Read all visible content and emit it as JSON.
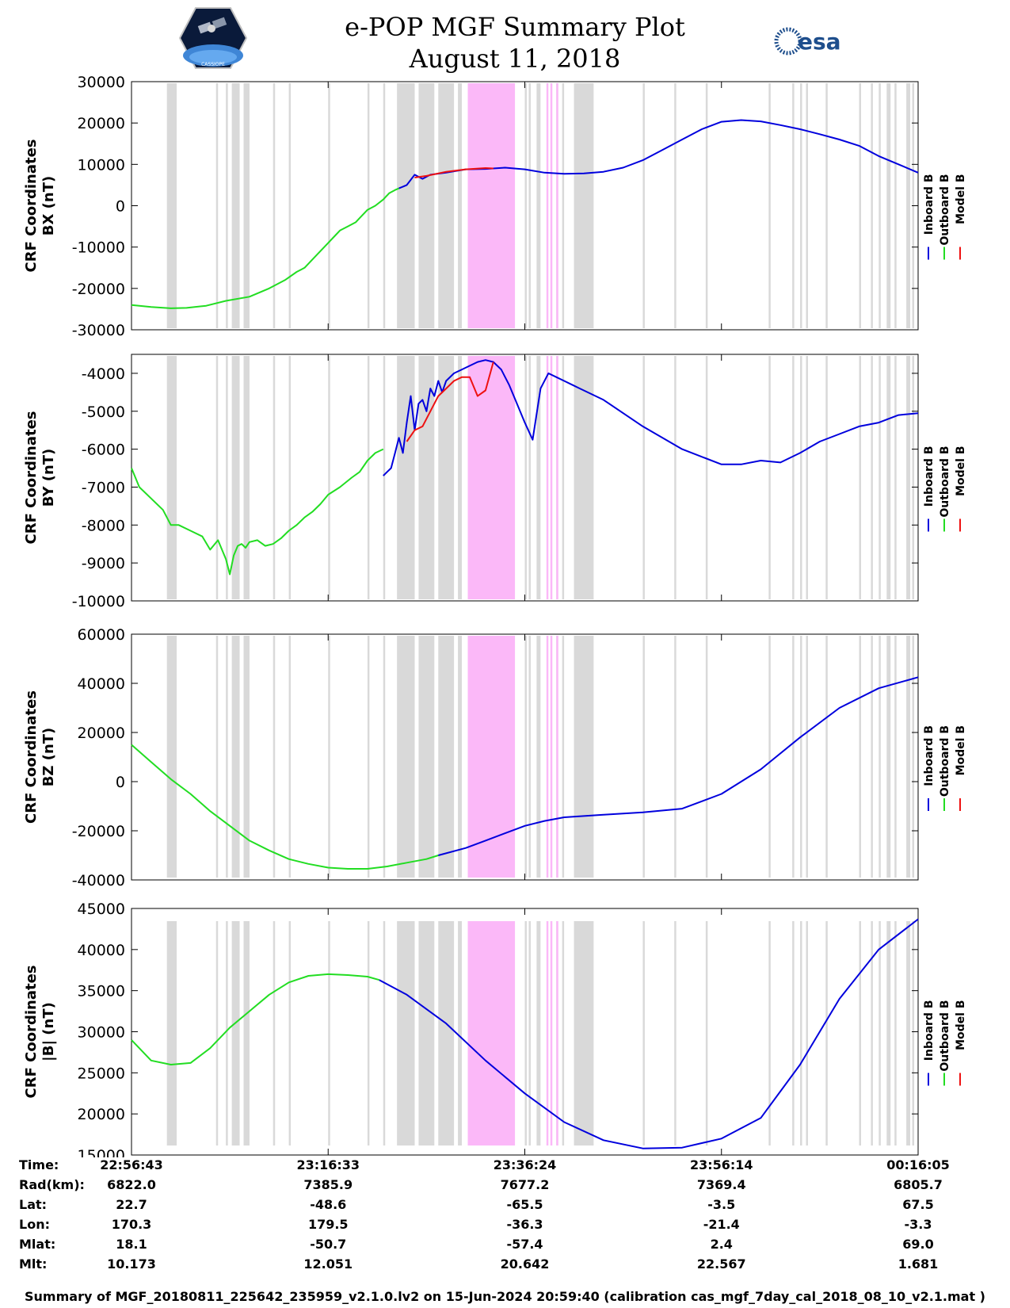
{
  "header": {
    "title_line1": "e-POP MGF Summary Plot",
    "title_line2": "August 11, 2018",
    "logo_left_text": "CASSIOPE",
    "logo_right_text": "esa"
  },
  "colors": {
    "inboard": "#0000dd",
    "outboard": "#22dd22",
    "model": "#ee1111",
    "gap_gray": "#d9d9d9",
    "gap_pink": "#fbb8f8"
  },
  "legend": [
    "Inboard B",
    "Outboard B",
    "Model B"
  ],
  "chart_data": [
    {
      "type": "line",
      "id": "bx",
      "ylabel_line1": "CRF Coordinates",
      "ylabel_line2": "BX (nT)",
      "ylim": [
        -30000,
        30000
      ],
      "yticks": [
        30000,
        20000,
        10000,
        0,
        -10000,
        -20000,
        -30000
      ],
      "series": [
        {
          "name": "Outboard B",
          "color_key": "outboard",
          "x": [
            0,
            0.02,
            0.05,
            0.1,
            0.14,
            0.19,
            0.24,
            0.3,
            0.35,
            0.39,
            0.42,
            0.44,
            0.46,
            0.48,
            0.5,
            0.52,
            0.53,
            0.55,
            0.57,
            0.58,
            0.6,
            0.62,
            0.64,
            0.655,
            0.67,
            0.68
          ],
          "y": [
            -24000,
            -24200,
            -24500,
            -24800,
            -24700,
            -24200,
            -23000,
            -22000,
            -20000,
            -18000,
            -16000,
            -15000,
            -13000,
            -11000,
            -9000,
            -7000,
            -6000,
            -5000,
            -4000,
            -3000,
            -1000,
            0,
            1500,
            3000,
            3800,
            4200
          ]
        },
        {
          "name": "Inboard B",
          "color_key": "inboard",
          "x": [
            0.68,
            0.7,
            0.72,
            0.74,
            0.76,
            0.8,
            0.85,
            0.9,
            0.95,
            1.0,
            1.05,
            1.1,
            1.15,
            1.2,
            1.25,
            1.3,
            1.35,
            1.4,
            1.45,
            1.5,
            1.55,
            1.6,
            1.65,
            1.7,
            1.75,
            1.8,
            1.85,
            1.9,
            1.95,
            2.0
          ],
          "y": [
            4200,
            5000,
            7500,
            6500,
            7500,
            8000,
            8800,
            8900,
            9200,
            8800,
            8000,
            7700,
            7800,
            8200,
            9200,
            11000,
            13500,
            16000,
            18500,
            20300,
            20700,
            20400,
            19500,
            18500,
            17300,
            16000,
            14500,
            12000,
            10000,
            8000
          ]
        },
        {
          "name": "Model B",
          "color_key": "model",
          "x": [
            0.72,
            0.75,
            0.8,
            0.85,
            0.9,
            0.92
          ],
          "y": [
            6800,
            7200,
            8200,
            8800,
            9100,
            9000
          ]
        }
      ]
    },
    {
      "type": "line",
      "id": "by",
      "ylabel_line1": "CRF Coordinates",
      "ylabel_line2": "BY (nT)",
      "ylim": [
        -10000,
        -3500
      ],
      "yticks": [
        -4000,
        -5000,
        -6000,
        -7000,
        -8000,
        -9000,
        -10000
      ],
      "series": [
        {
          "name": "Outboard B",
          "color_key": "outboard",
          "x": [
            0,
            0.02,
            0.05,
            0.08,
            0.1,
            0.12,
            0.15,
            0.18,
            0.2,
            0.22,
            0.24,
            0.25,
            0.26,
            0.27,
            0.28,
            0.29,
            0.3,
            0.32,
            0.34,
            0.36,
            0.38,
            0.4,
            0.42,
            0.44,
            0.46,
            0.48,
            0.5,
            0.53,
            0.56,
            0.58,
            0.6,
            0.62,
            0.64
          ],
          "y": [
            -6500,
            -7000,
            -7300,
            -7600,
            -8000,
            -8000,
            -8150,
            -8300,
            -8650,
            -8400,
            -8900,
            -9300,
            -8800,
            -8550,
            -8500,
            -8600,
            -8450,
            -8400,
            -8550,
            -8500,
            -8350,
            -8150,
            -8000,
            -7800,
            -7650,
            -7450,
            -7200,
            -7000,
            -6750,
            -6600,
            -6300,
            -6100,
            -6000
          ]
        },
        {
          "name": "Inboard B",
          "color_key": "inboard",
          "x": [
            0.64,
            0.65,
            0.66,
            0.67,
            0.68,
            0.69,
            0.7,
            0.71,
            0.72,
            0.73,
            0.74,
            0.75,
            0.76,
            0.77,
            0.78,
            0.79,
            0.8,
            0.82,
            0.84,
            0.86,
            0.88,
            0.9,
            0.92,
            0.94,
            0.96,
            0.98,
            1.0,
            1.02,
            1.04,
            1.06,
            1.08,
            1.1,
            1.12,
            1.14,
            1.2,
            1.3,
            1.4,
            1.5,
            1.55,
            1.6,
            1.65,
            1.7,
            1.75,
            1.8,
            1.85,
            1.9,
            1.95,
            2.0
          ],
          "y": [
            -6700,
            -6600,
            -6500,
            -6100,
            -5700,
            -6100,
            -5300,
            -4600,
            -5500,
            -4800,
            -4700,
            -5000,
            -4400,
            -4600,
            -4200,
            -4500,
            -4200,
            -4000,
            -3900,
            -3800,
            -3700,
            -3650,
            -3700,
            -3900,
            -4300,
            -4800,
            -5300,
            -5750,
            -4400,
            -4000,
            -4100,
            -4200,
            -4300,
            -4400,
            -4700,
            -5400,
            -6000,
            -6400,
            -6400,
            -6300,
            -6350,
            -6100,
            -5800,
            -5600,
            -5400,
            -5300,
            -5100,
            -5050
          ]
        },
        {
          "name": "Model B",
          "color_key": "model",
          "x": [
            0.7,
            0.72,
            0.74,
            0.76,
            0.78,
            0.8,
            0.82,
            0.84,
            0.86,
            0.88,
            0.9,
            0.92
          ],
          "y": [
            -5800,
            -5500,
            -5400,
            -5000,
            -4600,
            -4400,
            -4200,
            -4100,
            -4100,
            -4600,
            -4450,
            -3700
          ]
        }
      ]
    },
    {
      "type": "line",
      "id": "bz",
      "ylabel_line1": "CRF Coordinates",
      "ylabel_line2": "BZ (nT)",
      "ylim": [
        -40000,
        60000
      ],
      "yticks": [
        60000,
        40000,
        20000,
        0,
        -20000,
        -40000
      ],
      "series": [
        {
          "name": "Outboard B",
          "color_key": "outboard",
          "x": [
            0,
            0.05,
            0.1,
            0.15,
            0.2,
            0.25,
            0.3,
            0.35,
            0.4,
            0.45,
            0.5,
            0.55,
            0.6,
            0.65,
            0.7,
            0.75,
            0.78
          ],
          "y": [
            15000,
            8000,
            1000,
            -5000,
            -12000,
            -18000,
            -24000,
            -28000,
            -31500,
            -33500,
            -35000,
            -35500,
            -35500,
            -34500,
            -33000,
            -31500,
            -30000
          ]
        },
        {
          "name": "Inboard B",
          "color_key": "inboard",
          "x": [
            0.78,
            0.85,
            0.9,
            0.95,
            1.0,
            1.05,
            1.1,
            1.2,
            1.3,
            1.4,
            1.5,
            1.6,
            1.7,
            1.8,
            1.9,
            2.0
          ],
          "y": [
            -30000,
            -27000,
            -24000,
            -21000,
            -18000,
            -16000,
            -14500,
            -13500,
            -12500,
            -11000,
            -5000,
            5000,
            18000,
            30000,
            38000,
            42500
          ]
        }
      ]
    },
    {
      "type": "line",
      "id": "bmag",
      "ylabel_line1": "CRF Coordinates",
      "ylabel_line2": "|B| (nT)",
      "ylim": [
        15000,
        45000
      ],
      "yticks": [
        45000,
        40000,
        35000,
        30000,
        25000,
        20000,
        15000
      ],
      "series": [
        {
          "name": "Outboard B",
          "color_key": "outboard",
          "x": [
            0,
            0.05,
            0.1,
            0.15,
            0.2,
            0.25,
            0.3,
            0.35,
            0.4,
            0.45,
            0.5,
            0.55,
            0.6,
            0.63
          ],
          "y": [
            29000,
            26500,
            26000,
            26200,
            28000,
            30500,
            32500,
            34500,
            36000,
            36800,
            37000,
            36900,
            36700,
            36300
          ]
        },
        {
          "name": "Inboard B",
          "color_key": "inboard",
          "x": [
            0.63,
            0.7,
            0.8,
            0.9,
            1.0,
            1.1,
            1.2,
            1.3,
            1.4,
            1.5,
            1.6,
            1.7,
            1.8,
            1.9,
            2.0
          ],
          "y": [
            36300,
            34500,
            31000,
            26500,
            22500,
            19000,
            16800,
            15800,
            15900,
            17000,
            19500,
            26000,
            34000,
            40000,
            43700
          ]
        }
      ]
    }
  ],
  "gap_bands": {
    "gray": [
      [
        0.09,
        0.115
      ],
      [
        0.215,
        0.22
      ],
      [
        0.24,
        0.245
      ],
      [
        0.255,
        0.275
      ],
      [
        0.285,
        0.3
      ],
      [
        0.36,
        0.365
      ],
      [
        0.4,
        0.405
      ],
      [
        0.5,
        0.505
      ],
      [
        0.6,
        0.605
      ],
      [
        0.64,
        0.645
      ],
      [
        0.675,
        0.72
      ],
      [
        0.73,
        0.77
      ],
      [
        0.78,
        0.82
      ],
      [
        0.83,
        0.84
      ],
      [
        1.0,
        1.005
      ],
      [
        1.01,
        1.015
      ],
      [
        1.03,
        1.04
      ],
      [
        1.08,
        1.085
      ],
      [
        1.095,
        1.1
      ],
      [
        1.125,
        1.175
      ],
      [
        1.3,
        1.305
      ],
      [
        1.38,
        1.385
      ],
      [
        1.46,
        1.465
      ],
      [
        1.62,
        1.625
      ],
      [
        1.68,
        1.685
      ],
      [
        1.7,
        1.705
      ],
      [
        1.715,
        1.72
      ],
      [
        1.765,
        1.77
      ],
      [
        1.85,
        1.855
      ],
      [
        1.88,
        1.885
      ],
      [
        1.9,
        1.905
      ],
      [
        1.92,
        1.93
      ],
      [
        1.94,
        1.945
      ],
      [
        1.97,
        1.98
      ],
      [
        1.985,
        1.99
      ]
    ],
    "pink": [
      [
        0.855,
        0.975
      ],
      [
        1.055,
        1.06
      ],
      [
        1.065,
        1.07
      ],
      [
        1.08,
        1.085
      ]
    ]
  },
  "x_axis": {
    "xlim": [
      0,
      2.0
    ],
    "tick_positions": [
      0,
      0.5,
      1.0,
      1.5,
      2.0
    ]
  },
  "info_table": {
    "rows": [
      {
        "label": "Time:",
        "values": [
          "22:56:43",
          "23:16:33",
          "23:36:24",
          "23:56:14",
          "00:16:05"
        ]
      },
      {
        "label": "Rad(km):",
        "values": [
          "6822.0",
          "7385.9",
          "7677.2",
          "7369.4",
          "6805.7"
        ]
      },
      {
        "label": "Lat:",
        "values": [
          "22.7",
          "-48.6",
          "-65.5",
          "-3.5",
          "67.5"
        ]
      },
      {
        "label": "Lon:",
        "values": [
          "170.3",
          "179.5",
          "-36.3",
          "-21.4",
          "-3.3"
        ]
      },
      {
        "label": "Mlat:",
        "values": [
          "18.1",
          "-50.7",
          "-57.4",
          "2.4",
          "69.0"
        ]
      },
      {
        "label": "Mlt:",
        "values": [
          "10.173",
          "12.051",
          "20.642",
          "22.567",
          "1.681"
        ]
      }
    ]
  },
  "footer": "Summary of MGF_20180811_225642_235959_v2.1.0.lv2 on 15-Jun-2024 20:59:40 (calibration cas_mgf_7day_cal_2018_08_10_v2.1.mat )"
}
